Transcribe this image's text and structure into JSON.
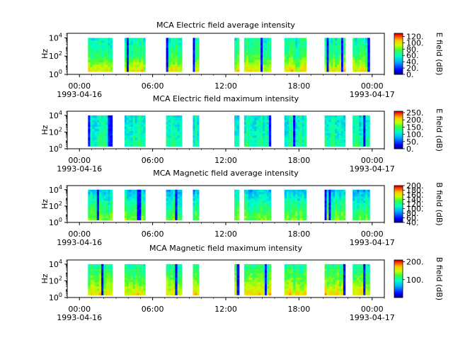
{
  "chart_data": [
    {
      "type": "heatmap",
      "title": "MCA  Electric field average intensity",
      "ylabel": "Hz",
      "ytick_labels": [
        "10^0",
        "10^2",
        "10^4"
      ],
      "xtick_labels": [
        "00:00",
        "06:00",
        "12:00",
        "18:00",
        "00:00"
      ],
      "xdate_labels": [
        "1993-04-16",
        "",
        "",
        "",
        "1993-04-17"
      ],
      "x_range_hours": [
        -1,
        25
      ],
      "ylim_log10": [
        0,
        4.5
      ],
      "colorbar": {
        "label": "E field (dB)",
        "range": [
          0,
          130
        ],
        "ticks": [
          "0.",
          "20.",
          "40.",
          "60.",
          "80.",
          "100.",
          "120."
        ]
      },
      "blocks_hours": [
        [
          0.7,
          2.7
        ],
        [
          3.7,
          5.4
        ],
        [
          7.1,
          8.4
        ],
        [
          9.3,
          9.8
        ],
        [
          12.7,
          13.1
        ],
        [
          13.5,
          15.7
        ],
        [
          16.8,
          18.6
        ],
        [
          20.1,
          21.8
        ],
        [
          22.4,
          23.8
        ]
      ],
      "freq_range_log10": [
        0.3,
        4.0
      ],
      "intensity_profile": {
        "low_freq_db": 100,
        "mid_freq_db": 70,
        "high_freq_db": 60
      }
    },
    {
      "type": "heatmap",
      "title": "MCA  Electric field maximum intensity",
      "ylabel": "Hz",
      "ytick_labels": [
        "10^0",
        "10^2",
        "10^4"
      ],
      "xtick_labels": [
        "00:00",
        "06:00",
        "12:00",
        "18:00",
        "00:00"
      ],
      "xdate_labels": [
        "1993-04-16",
        "",
        "",
        "",
        "1993-04-17"
      ],
      "x_range_hours": [
        -1,
        25
      ],
      "ylim_log10": [
        0,
        4.5
      ],
      "colorbar": {
        "label": "E field (dB)",
        "range": [
          0,
          260
        ],
        "ticks": [
          "0.",
          "50.",
          "100.",
          "150.",
          "200.",
          "250."
        ]
      },
      "blocks_hours": [
        [
          0.7,
          2.7
        ],
        [
          3.7,
          5.4
        ],
        [
          7.1,
          8.4
        ],
        [
          9.3,
          9.8
        ],
        [
          12.7,
          13.1
        ],
        [
          13.5,
          15.7
        ],
        [
          16.8,
          18.6
        ],
        [
          20.1,
          21.8
        ],
        [
          22.4,
          23.8
        ]
      ],
      "freq_range_log10": [
        0.3,
        4.0
      ],
      "intensity_profile": {
        "low_freq_db": 130,
        "mid_freq_db": 115,
        "high_freq_db": 110
      }
    },
    {
      "type": "heatmap",
      "title": "MCA  Magnetic field average intensity",
      "ylabel": "Hz",
      "ytick_labels": [
        "10^0",
        "10^2",
        "10^4"
      ],
      "xtick_labels": [
        "00:00",
        "06:00",
        "12:00",
        "18:00",
        "00:00"
      ],
      "xdate_labels": [
        "1993-04-16",
        "",
        "",
        "",
        "1993-04-17"
      ],
      "x_range_hours": [
        -1,
        25
      ],
      "ylim_log10": [
        0,
        4.5
      ],
      "colorbar": {
        "label": "B field (dB)",
        "range": [
          40,
          200
        ],
        "ticks": [
          "40.",
          "60.",
          "80.",
          "100.",
          "120.",
          "140.",
          "160.",
          "180.",
          "200."
        ]
      },
      "blocks_hours": [
        [
          0.7,
          2.7
        ],
        [
          3.7,
          5.4
        ],
        [
          7.1,
          8.4
        ],
        [
          9.3,
          9.8
        ],
        [
          12.7,
          13.1
        ],
        [
          13.5,
          15.7
        ],
        [
          16.8,
          18.6
        ],
        [
          20.1,
          21.8
        ],
        [
          22.4,
          23.8
        ]
      ],
      "freq_range_log10": [
        0.3,
        4.0
      ],
      "intensity_profile": {
        "low_freq_db": 140,
        "mid_freq_db": 120,
        "high_freq_db": 95
      }
    },
    {
      "type": "heatmap",
      "title": "MCA  Magnetic field maximum intensity",
      "ylabel": "Hz",
      "ytick_labels": [
        "10^0",
        "10^2",
        "10^4"
      ],
      "xtick_labels": [
        "00:00",
        "06:00",
        "12:00",
        "18:00",
        "00:00"
      ],
      "xdate_labels": [
        "1993-04-16",
        "",
        "",
        "",
        "1993-04-17"
      ],
      "x_range_hours": [
        -1,
        25
      ],
      "ylim_log10": [
        0,
        4.5
      ],
      "colorbar": {
        "label": "B field (dB)",
        "range": [
          0,
          210
        ],
        "ticks": [
          "100.",
          "200."
        ]
      },
      "blocks_hours": [
        [
          0.7,
          2.7
        ],
        [
          3.7,
          5.4
        ],
        [
          7.1,
          8.4
        ],
        [
          9.3,
          9.8
        ],
        [
          12.7,
          13.1
        ],
        [
          13.5,
          15.7
        ],
        [
          16.8,
          18.6
        ],
        [
          20.1,
          21.8
        ],
        [
          22.4,
          23.8
        ]
      ],
      "freq_range_log10": [
        0.3,
        4.0
      ],
      "intensity_profile": {
        "low_freq_db": 165,
        "mid_freq_db": 130,
        "high_freq_db": 105
      }
    }
  ]
}
